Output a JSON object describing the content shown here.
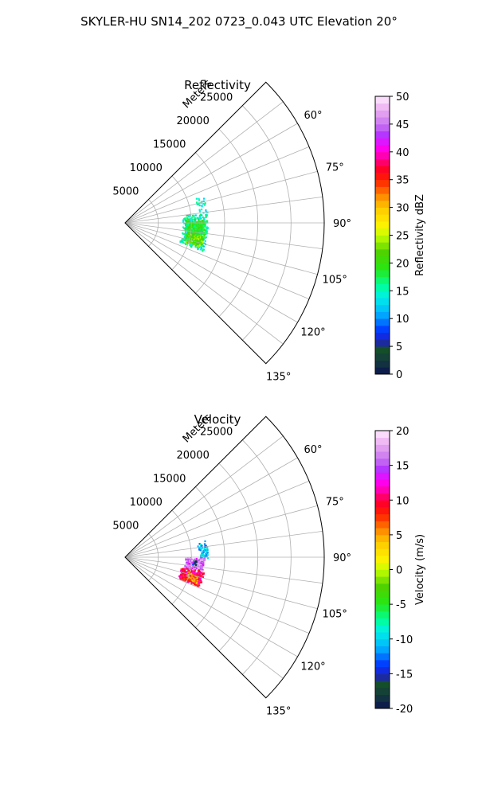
{
  "suptitle": "SKYLER-HU  SN14_202  0723_0.043 UTC Elevation 20°",
  "chart_data": [
    {
      "type": "heatmap",
      "subtype": "polar-sector",
      "title": "Reflectivity",
      "radial_axis_label": "Meters",
      "radial_ticks": [
        "5000",
        "10000",
        "15000",
        "20000",
        "25000"
      ],
      "radial_tick_values": [
        5000,
        10000,
        15000,
        20000,
        25000
      ],
      "rlim": [
        0,
        30000
      ],
      "azimuth_range_deg": [
        45,
        135
      ],
      "azimuth_ticks": [
        "60°",
        "75°",
        "90°",
        "105°",
        "120°",
        "135°"
      ],
      "azimuth_tick_values": [
        60,
        75,
        90,
        105,
        120,
        135
      ],
      "grid": true,
      "colorbar": {
        "label": "Reflectivity dBZ",
        "range": [
          0,
          50
        ],
        "ticks": [
          "0",
          "5",
          "10",
          "15",
          "20",
          "25",
          "30",
          "35",
          "40",
          "45",
          "50"
        ],
        "tick_values": [
          0,
          5,
          10,
          15,
          20,
          25,
          30,
          35,
          40,
          45,
          50
        ]
      },
      "echo_regions": [
        {
          "r_range": [
            8500,
            12500
          ],
          "az_range": [
            82,
            110
          ],
          "value": 15,
          "density": 0.35
        },
        {
          "r_range": [
            9000,
            12000
          ],
          "az_range": [
            86,
            106
          ],
          "value": 19,
          "density": 0.6
        },
        {
          "r_range": [
            9500,
            12000
          ],
          "az_range": [
            98,
            108
          ],
          "value": 22,
          "density": 0.55
        },
        {
          "r_range": [
            11000,
            12500
          ],
          "az_range": [
            70,
            82
          ],
          "value": 14,
          "density": 0.15
        }
      ]
    },
    {
      "type": "heatmap",
      "subtype": "polar-sector",
      "title": "Velocity",
      "radial_axis_label": "Meters",
      "radial_ticks": [
        "5000",
        "10000",
        "15000",
        "20000",
        "25000"
      ],
      "radial_tick_values": [
        5000,
        10000,
        15000,
        20000,
        25000
      ],
      "rlim": [
        0,
        30000
      ],
      "azimuth_range_deg": [
        45,
        135
      ],
      "azimuth_ticks": [
        "60°",
        "75°",
        "90°",
        "105°",
        "120°",
        "135°"
      ],
      "azimuth_tick_values": [
        60,
        75,
        90,
        105,
        120,
        135
      ],
      "grid": true,
      "colorbar": {
        "label": "Velocity (m/s)",
        "range": [
          -20,
          20
        ],
        "ticks": [
          "-20",
          "-15",
          "-10",
          "-5",
          "0",
          "5",
          "10",
          "15",
          "20"
        ],
        "tick_values": [
          -20,
          -15,
          -10,
          -5,
          0,
          5,
          10,
          15,
          20
        ]
      },
      "echo_regions": [
        {
          "r_range": [
            11000,
            12500
          ],
          "az_range": [
            78,
            92
          ],
          "value": -11,
          "density": 0.35
        },
        {
          "r_range": [
            9000,
            12000
          ],
          "az_range": [
            90,
            100
          ],
          "value": 16,
          "density": 0.6
        },
        {
          "r_range": [
            8500,
            12000
          ],
          "az_range": [
            100,
            112
          ],
          "value": 10,
          "density": 0.65
        },
        {
          "r_range": [
            9500,
            11500
          ],
          "az_range": [
            103,
            110
          ],
          "value": 6,
          "density": 0.5
        },
        {
          "r_range": [
            10000,
            10800
          ],
          "az_range": [
            92,
            96
          ],
          "value": -16,
          "density": 0.3
        }
      ]
    }
  ]
}
